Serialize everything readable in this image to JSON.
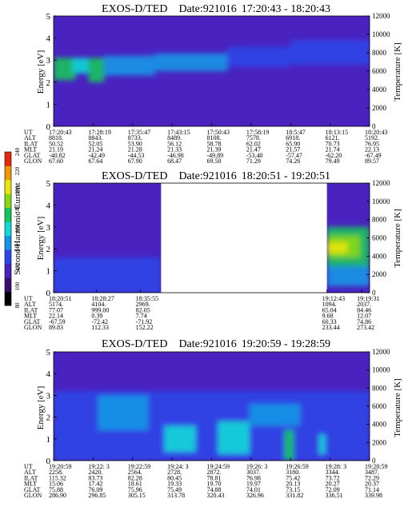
{
  "chart_data": {
    "type": "heatmap",
    "colorbar": {
      "label": "Second Harmonic Current",
      "ticks": [
        "80",
        "100",
        "120",
        "140",
        "160",
        "180",
        "200",
        "220",
        "240"
      ],
      "colors": [
        "#000000",
        "#3a0e6e",
        "#4a22c0",
        "#2c46e8",
        "#1496e6",
        "#12d8d8",
        "#14c45c",
        "#88d818",
        "#e8e40c",
        "#ec9a0a",
        "#e8280c"
      ]
    },
    "panels": [
      {
        "title": "EXOS-D/TED",
        "date": "Date:921016",
        "time_range": "17:20:43 - 18:20:43",
        "ylabel": "Energy [eV]",
        "ylabel_right": "Temperature [K]",
        "ylim": [
          0,
          5
        ],
        "yticks": [
          "0",
          "1",
          "2",
          "3",
          "4",
          "5"
        ],
        "yticks_right": [
          "0",
          "2000",
          "4000",
          "6000",
          "8000",
          "10000",
          "12000"
        ],
        "coverage": [
          [
            0,
            1
          ]
        ],
        "features": [
          {
            "x0": 0.0,
            "x1": 0.07,
            "y0": 2.1,
            "y1": 3.1,
            "level": 0.55
          },
          {
            "x0": 0.06,
            "x1": 0.11,
            "y0": 2.4,
            "y1": 3.1,
            "level": 0.4
          },
          {
            "x0": 0.11,
            "x1": 0.16,
            "y0": 2.0,
            "y1": 3.1,
            "level": 0.5
          },
          {
            "x0": 0.16,
            "x1": 0.32,
            "y0": 2.3,
            "y1": 3.2,
            "level": 0.35
          },
          {
            "x0": 0.32,
            "x1": 0.55,
            "y0": 2.5,
            "y1": 3.3,
            "level": 0.28
          },
          {
            "x0": 0.55,
            "x1": 0.75,
            "y0": 2.7,
            "y1": 3.6,
            "level": 0.22
          },
          {
            "x0": 0.75,
            "x1": 1.0,
            "y0": 2.8,
            "y1": 3.9,
            "level": 0.18
          }
        ],
        "orbit": {
          "labels": [
            "UT",
            "ALT",
            "ILAT",
            "MLT",
            "GLAT",
            "GLON"
          ],
          "columns": [
            [
              "17:20:43",
              "8818.",
              "50.52",
              "21.19",
              "-40.82",
              "67.60"
            ],
            [
              "17:28:19",
              "8843.",
              "52.05",
              "21.24",
              "-42.49",
              "67.64"
            ],
            [
              "17:35:47",
              "8733.",
              "53.90",
              "21.28",
              "-44.53",
              "67.90"
            ],
            [
              "17:43:15",
              "8489.",
              "56.12",
              "21.33",
              "-46.98",
              "68.47"
            ],
            [
              "17:50:43",
              "8108.",
              "58.78",
              "21.39",
              "-49.89",
              "69.50"
            ],
            [
              "17:58:19",
              "7578.",
              "62.02",
              "21.47",
              "-53.40",
              "71.29"
            ],
            [
              "18:5:47",
              "6918.",
              "65.90",
              "21.57",
              "-57.47",
              "74.26"
            ],
            [
              "18:13:15",
              "6121.",
              "70.73",
              "21.74",
              "-62.20",
              "79.49"
            ],
            [
              "18:20:43",
              "5192.",
              "76.95",
              "22.13",
              "-67.49",
              "89.57"
            ]
          ]
        }
      },
      {
        "title": "EXOS-D/TED",
        "date": "Date:921016",
        "time_range": "18:20:51 - 19:20:51",
        "ylabel": "Energy [eV]",
        "ylabel_right": "Temperature [K]",
        "ylim": [
          0,
          5
        ],
        "yticks": [
          "0",
          "1",
          "2",
          "3",
          "4",
          "5"
        ],
        "yticks_right": [
          "0",
          "2000",
          "4000",
          "6000",
          "8000",
          "10000",
          "12000"
        ],
        "coverage": [
          [
            0,
            0.34
          ],
          [
            0.865,
            1
          ]
        ],
        "features": [
          {
            "x0": 0.0,
            "x1": 0.34,
            "y0": 0.0,
            "y1": 1.6,
            "level": 0.18
          },
          {
            "x0": 0.865,
            "x1": 1.0,
            "y0": 1.2,
            "y1": 3.0,
            "level": 0.55
          },
          {
            "x0": 0.865,
            "x1": 0.97,
            "y0": 1.6,
            "y1": 2.6,
            "level": 0.72
          },
          {
            "x0": 0.865,
            "x1": 0.93,
            "y0": 1.8,
            "y1": 2.3,
            "level": 0.82
          },
          {
            "x0": 0.865,
            "x1": 1.0,
            "y0": 0.3,
            "y1": 1.2,
            "level": 0.35
          }
        ],
        "orbit": {
          "labels": [
            "UT",
            "ALT",
            "ILAT",
            "MLT",
            "GLAT",
            "GLON"
          ],
          "columns": [
            [
              "18:20:51",
              "5174.",
              "77.07",
              "22.14",
              "-67.59",
              "89.83"
            ],
            [
              "18:28:27",
              "4104.",
              "999.00",
              "0.39",
              "-72.42",
              "112.33"
            ],
            [
              "18:35:55",
              "2969.",
              "82.05",
              "7.74",
              "-71.92",
              "152.22"
            ],
            [
              "19:12:43",
              "1094.",
              "65.04",
              "9.68",
              "60.33",
              "233.44"
            ],
            [
              "19:19:31",
              "2037.",
              "84.46",
              "12.07",
              "74.86",
              "273.42"
            ]
          ]
        }
      },
      {
        "title": "EXOS-D/TED",
        "date": "Date:921016",
        "time_range": "19:20:59 - 19:28:59",
        "ylabel": "Energy [eV]",
        "ylabel_right": "Temperature [K]",
        "ylim": [
          0,
          5
        ],
        "yticks": [
          "0",
          "1",
          "2",
          "3",
          "4",
          "5"
        ],
        "yticks_right": [
          "0",
          "2000",
          "4000",
          "6000",
          "8000",
          "10000",
          "12000"
        ],
        "coverage": [
          [
            0,
            1
          ]
        ],
        "features": [
          {
            "x0": 0.0,
            "x1": 1.0,
            "y0": 0.0,
            "y1": 3.2,
            "level": 0.22
          },
          {
            "x0": 0.14,
            "x1": 0.3,
            "y0": 1.4,
            "y1": 3.0,
            "level": 0.3
          },
          {
            "x0": 0.35,
            "x1": 0.45,
            "y0": 0.4,
            "y1": 1.6,
            "level": 0.45
          },
          {
            "x0": 0.52,
            "x1": 0.62,
            "y0": 0.3,
            "y1": 1.8,
            "level": 0.4
          },
          {
            "x0": 0.73,
            "x1": 0.76,
            "y0": 0.0,
            "y1": 1.4,
            "level": 0.55
          },
          {
            "x0": 0.84,
            "x1": 0.86,
            "y0": 0.3,
            "y1": 1.2,
            "level": 0.45
          },
          {
            "x0": 0.62,
            "x1": 0.78,
            "y0": 1.6,
            "y1": 2.6,
            "level": 0.3
          }
        ],
        "orbit": {
          "labels": [
            "UT",
            "ALT",
            "ILAT",
            "MLT",
            "GLAT",
            "GLON"
          ],
          "columns": [
            [
              "19:20:59",
              "2258.",
              "115.32",
              "15.06",
              "75.88",
              "286.90"
            ],
            [
              "19:22: 3",
              "2420.",
              "83.73",
              "17.42",
              "76.09",
              "296.85"
            ],
            [
              "19:22:59",
              "2564.",
              "82.28",
              "18.61",
              "75.96",
              "305.15"
            ],
            [
              "19:24: 3",
              "2728.",
              "80.45",
              "19.33",
              "75.49",
              "313.78"
            ],
            [
              "19:24:59",
              "2872.",
              "78.81",
              "19.70",
              "74.88",
              "320.43"
            ],
            [
              "19:26: 3",
              "3037.",
              "76.98",
              "19.97",
              "74.01",
              "326.96"
            ],
            [
              "19:26:59",
              "3180.",
              "75.42",
              "20.13",
              "73.15",
              "331.82"
            ],
            [
              "19:28: 3",
              "3344.",
              "73.72",
              "20.27",
              "72.09",
              "336.51"
            ],
            [
              "19:28:59",
              "3487.",
              "72.29",
              "20.37",
              "71.14",
              "339.98"
            ]
          ]
        }
      }
    ]
  }
}
